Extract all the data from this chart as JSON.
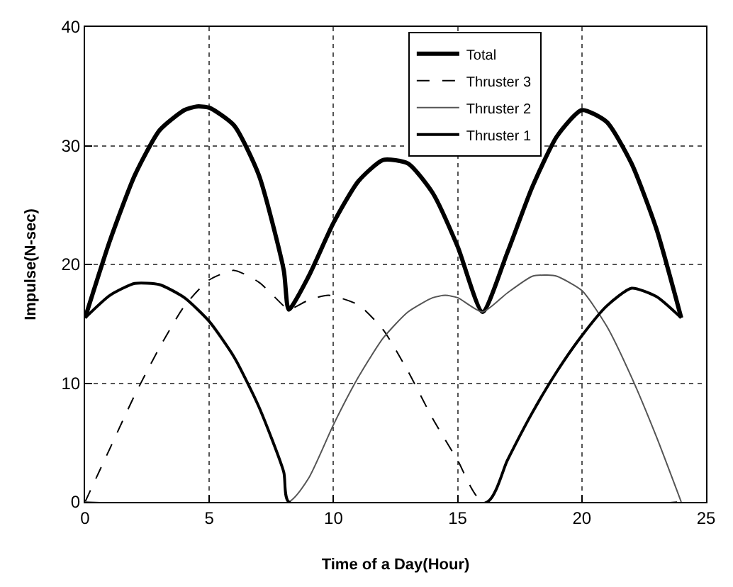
{
  "chart_data": {
    "type": "line",
    "xlabel": "Time of a Day(Hour)",
    "ylabel": "Impulse(N-sec)",
    "xlim": [
      0,
      25
    ],
    "ylim": [
      0,
      40
    ],
    "xticks": [
      0,
      5,
      10,
      15,
      20,
      25
    ],
    "yticks": [
      0,
      10,
      20,
      30,
      40
    ],
    "grid": true,
    "legend": "top right",
    "marker": "none",
    "series": [
      {
        "name": "Total",
        "color": "#000000",
        "line_style": "solid",
        "x": [
          0,
          1,
          2,
          3,
          4,
          4.5,
          5,
          6,
          7,
          8,
          8.2,
          9,
          10,
          11,
          12,
          13,
          14,
          15,
          16,
          17,
          18,
          19,
          20,
          21,
          22,
          23,
          24
        ],
        "values": [
          15.5,
          22,
          27.5,
          31.3,
          33,
          33.3,
          33.2,
          31.7,
          27.5,
          19.5,
          16.2,
          19,
          23.5,
          27,
          28.8,
          28.5,
          26,
          21.5,
          16,
          21,
          26.5,
          30.8,
          33,
          32,
          28.5,
          23,
          15.5
        ]
      },
      {
        "name": "Thruster 3",
        "color": "#000000",
        "line_style": "dashed",
        "x": [
          0,
          1,
          2,
          3,
          4,
          5,
          6,
          7,
          8,
          8.2,
          9,
          9.8,
          11,
          12,
          13,
          14,
          15,
          16,
          24
        ],
        "values": [
          0,
          4.5,
          9,
          13,
          16.5,
          18.7,
          19.5,
          18.5,
          16.5,
          16.2,
          17,
          17.4,
          16.6,
          14.5,
          11,
          7,
          3.5,
          0,
          0
        ]
      },
      {
        "name": "Thruster 2",
        "color": "#555555",
        "line_style": "solid",
        "x": [
          0,
          8.2,
          9,
          10,
          11,
          12,
          13,
          14,
          14.5,
          15,
          16,
          17,
          18,
          18.6,
          19,
          20,
          21,
          22,
          23,
          24
        ],
        "values": [
          0,
          0,
          2,
          6.5,
          10.5,
          13.8,
          16,
          17.2,
          17.4,
          17.2,
          16,
          17.6,
          19,
          19.1,
          19,
          17.8,
          14.8,
          10.5,
          5.5,
          0
        ]
      },
      {
        "name": "Thruster 1",
        "color": "#000000",
        "line_style": "solid",
        "x": [
          0,
          1,
          2,
          3,
          4,
          5,
          6,
          7,
          8,
          8.2,
          16.2,
          17,
          18,
          19,
          20,
          21,
          22,
          23,
          24
        ],
        "values": [
          15.5,
          17.4,
          18.4,
          18.3,
          17.2,
          15.2,
          12.2,
          8,
          2.5,
          0,
          0,
          3.5,
          7.5,
          11,
          14,
          16.5,
          18,
          17.3,
          15.5
        ]
      }
    ]
  }
}
